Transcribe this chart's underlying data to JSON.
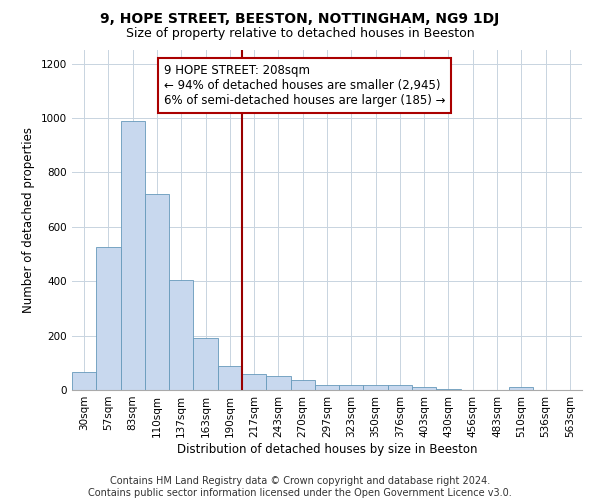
{
  "title": "9, HOPE STREET, BEESTON, NOTTINGHAM, NG9 1DJ",
  "subtitle": "Size of property relative to detached houses in Beeston",
  "xlabel": "Distribution of detached houses by size in Beeston",
  "ylabel": "Number of detached properties",
  "bar_color": "#c8d8ee",
  "bar_edge_color": "#6699bb",
  "grid_color": "#c8d4e0",
  "annotation_box_color": "#aa0000",
  "vline_color": "#990000",
  "annotation_line1": "9 HOPE STREET: 208sqm",
  "annotation_line2": "← 94% of detached houses are smaller (2,945)",
  "annotation_line3": "6% of semi-detached houses are larger (185) →",
  "footer_line1": "Contains HM Land Registry data © Crown copyright and database right 2024.",
  "footer_line2": "Contains public sector information licensed under the Open Government Licence v3.0.",
  "categories": [
    "30sqm",
    "57sqm",
    "83sqm",
    "110sqm",
    "137sqm",
    "163sqm",
    "190sqm",
    "217sqm",
    "243sqm",
    "270sqm",
    "297sqm",
    "323sqm",
    "350sqm",
    "376sqm",
    "403sqm",
    "430sqm",
    "456sqm",
    "483sqm",
    "510sqm",
    "536sqm",
    "563sqm"
  ],
  "values": [
    65,
    525,
    990,
    720,
    405,
    192,
    88,
    60,
    50,
    38,
    18,
    18,
    18,
    18,
    10,
    2,
    0,
    0,
    10,
    0,
    0
  ],
  "vline_index": 7,
  "ylim": [
    0,
    1250
  ],
  "yticks": [
    0,
    200,
    400,
    600,
    800,
    1000,
    1200
  ],
  "title_fontsize": 10,
  "subtitle_fontsize": 9,
  "xlabel_fontsize": 8.5,
  "ylabel_fontsize": 8.5,
  "tick_fontsize": 7.5,
  "annotation_fontsize": 8.5,
  "footer_fontsize": 7
}
